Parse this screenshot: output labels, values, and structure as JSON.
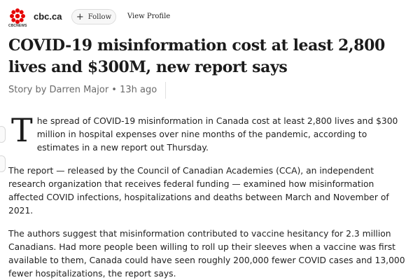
{
  "source": {
    "name": "cbc.ca",
    "logo_caption": "CBCNEWS",
    "logo_color": "#e60505",
    "follow_label": "Follow",
    "view_profile_label": "View Profile"
  },
  "article": {
    "headline": "COVID-19 misinformation cost at least 2,800 lives and $300M, new report says",
    "byline": "Story by Darren Major • 13h ago",
    "drop_cap": "T",
    "paragraph1_rest": "he spread of COVID-19 misinformation in Canada cost at least 2,800 lives and $300 million in hospital expenses over nine months of the pandemic, according to estimates in a new report out Thursday.",
    "paragraph2": "The report — released by the Council of Canadian Academies (CCA), an independent research organization that receives federal funding — examined how misinformation affected COVID infections, hospitalizations and deaths between March and November of 2021.",
    "paragraph3": "The authors suggest that misinformation contributed to vaccine hesitancy for 2.3 million Canadians. Had more people been willing to roll up their sleeves when a vaccine was first available to them, Canada could have seen roughly 200,000 fewer COVID cases and 13,000 fewer hospitalizations, the report says."
  },
  "icons": {
    "logo": "cbc-gem-icon",
    "follow": "plus-icon"
  }
}
